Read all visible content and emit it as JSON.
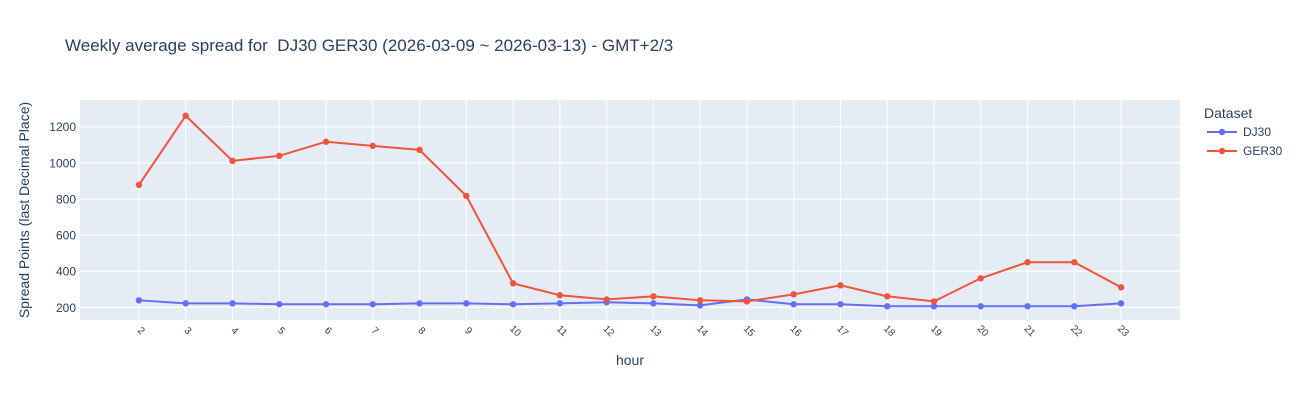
{
  "chart_data": {
    "type": "line",
    "title": "Weekly average spread for  DJ30 GER30 (2026-03-09 ~ 2026-03-13) - GMT+2/3",
    "xlabel": "hour",
    "ylabel": "Spread Points (last Decimal Place)",
    "x": [
      2,
      3,
      4,
      5,
      6,
      7,
      8,
      9,
      10,
      11,
      12,
      13,
      14,
      15,
      16,
      17,
      18,
      19,
      20,
      21,
      22,
      23
    ],
    "xlim": [
      0.74,
      24.26
    ],
    "ylim": [
      130,
      1348
    ],
    "yticks": [
      200,
      400,
      600,
      800,
      1000,
      1200
    ],
    "grid": true,
    "legend_title": "Dataset",
    "legend_position": "right",
    "background": "#e5ecf6",
    "series": [
      {
        "name": "DJ30",
        "color": "#636efa",
        "values": [
          239,
          222,
          222,
          217,
          217,
          217,
          222,
          222,
          217,
          222,
          228,
          222,
          211,
          244,
          217,
          217,
          206,
          206,
          206,
          206,
          206,
          222
        ]
      },
      {
        "name": "GER30",
        "color": "#ef553b",
        "values": [
          878,
          1261,
          1011,
          1039,
          1117,
          1094,
          1072,
          817,
          333,
          267,
          244,
          261,
          239,
          233,
          272,
          322,
          261,
          233,
          361,
          450,
          450,
          311
        ]
      }
    ]
  }
}
